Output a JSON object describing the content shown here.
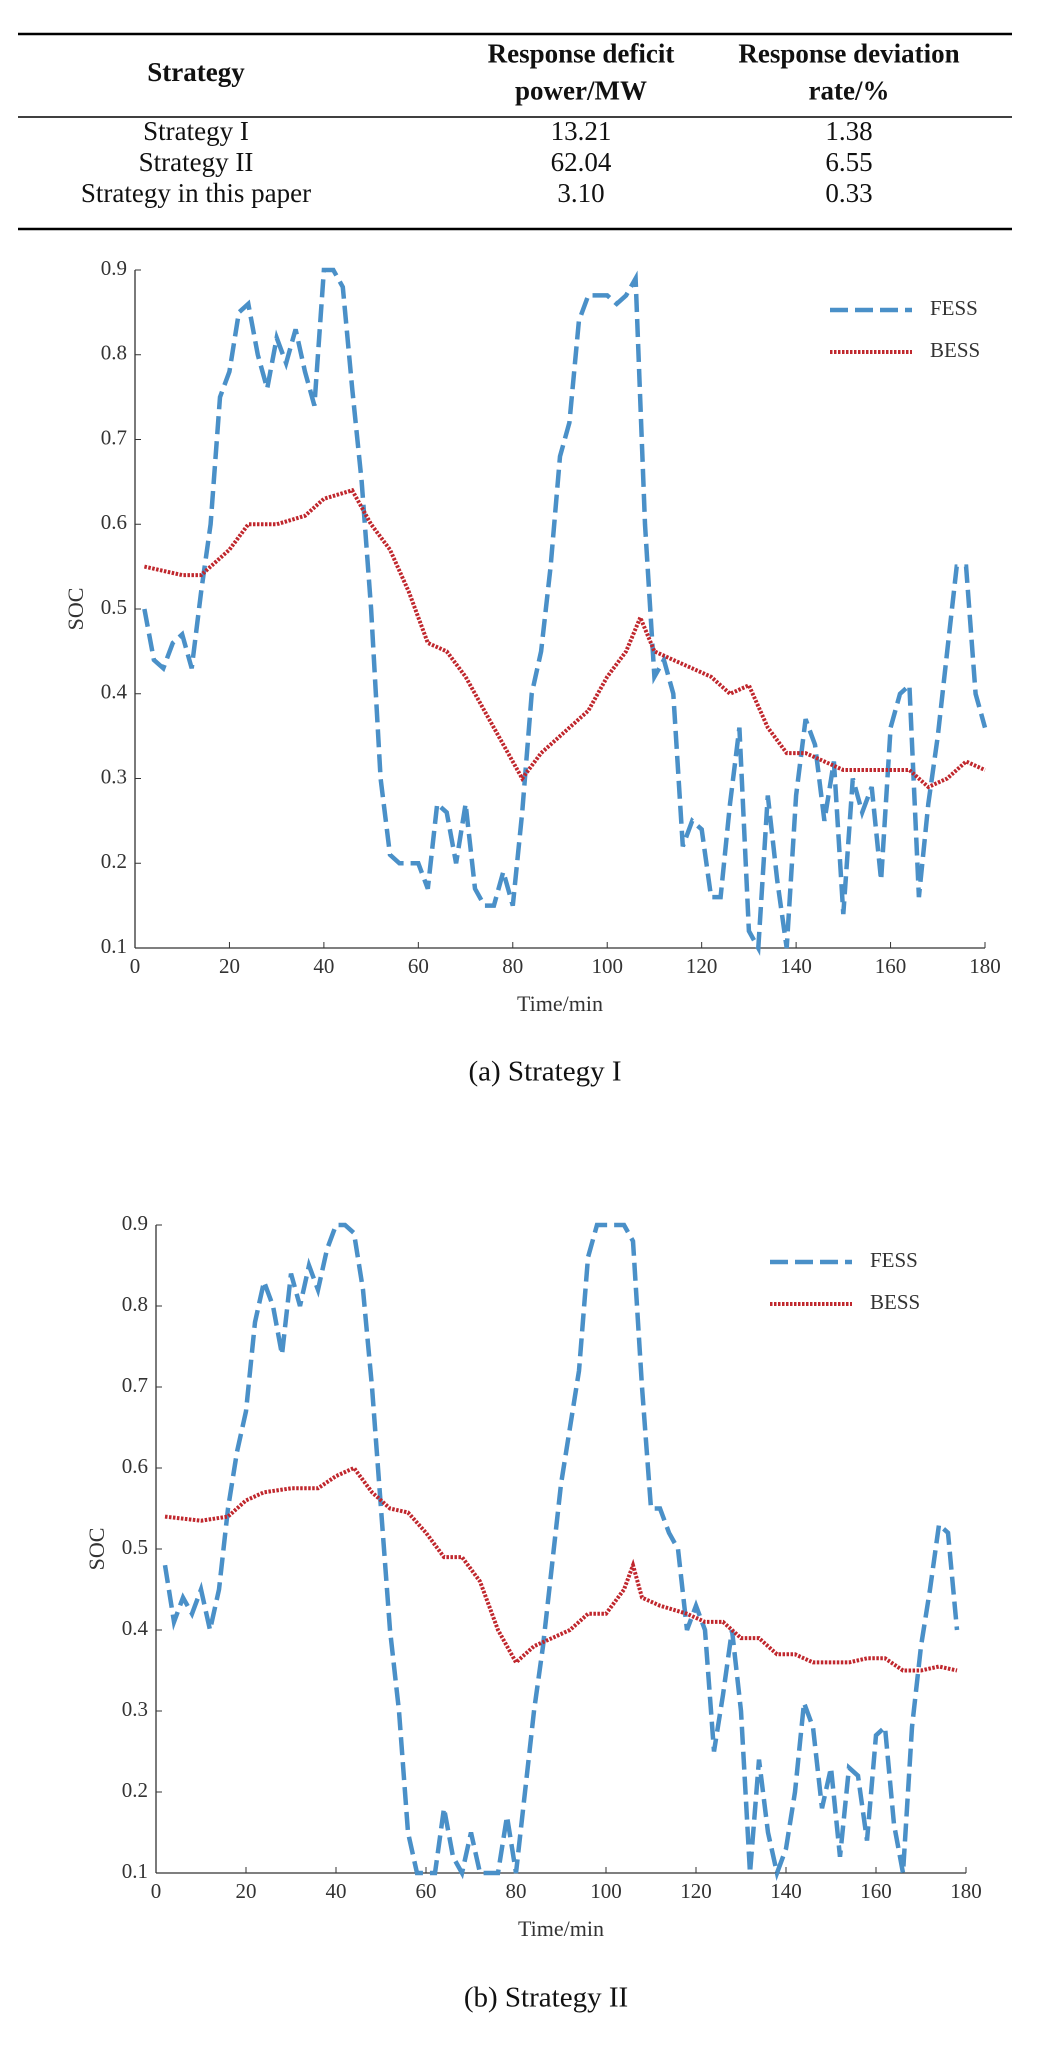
{
  "table": {
    "header": [
      [
        "Strategy"
      ],
      [
        "Response deficit",
        "power/MW"
      ],
      [
        "Response deviation",
        "rate/%"
      ]
    ],
    "rows": [
      [
        "Strategy I",
        "13.21",
        "1.38"
      ],
      [
        "Strategy II",
        "62.04",
        "6.55"
      ],
      [
        "Strategy in this paper",
        "3.10",
        "0.33"
      ]
    ]
  },
  "chart_data": [
    {
      "type": "line",
      "caption": "(a) Strategy I",
      "x_label": "Time/min",
      "y_label": "SOC",
      "xlim": [
        0,
        180
      ],
      "ylim": [
        0.1,
        0.9
      ],
      "xticks": [
        0,
        20,
        40,
        60,
        80,
        100,
        120,
        140,
        160,
        180
      ],
      "yticks": [
        0.1,
        0.2,
        0.3,
        0.4,
        0.5,
        0.6,
        0.7,
        0.8,
        0.9
      ],
      "legend": "upper right",
      "series": [
        {
          "name": "FESS",
          "color": "#4a90c8",
          "dash": "dashed",
          "x": [
            2,
            4,
            6,
            8,
            10,
            12,
            14,
            16,
            18,
            20,
            22,
            24,
            26,
            28,
            30,
            32,
            34,
            36,
            38,
            40,
            42,
            44,
            46,
            48,
            50,
            52,
            54,
            56,
            58,
            60,
            62,
            64,
            66,
            68,
            70,
            72,
            74,
            76,
            78,
            80,
            82,
            84,
            86,
            88,
            90,
            92,
            94,
            96,
            98,
            100,
            102,
            104,
            106,
            108,
            110,
            112,
            114,
            116,
            118,
            120,
            122,
            124,
            126,
            128,
            130,
            132,
            134,
            136,
            138,
            140,
            142,
            144,
            146,
            148,
            150,
            152,
            154,
            156,
            158,
            160,
            162,
            164,
            166,
            168,
            170,
            172,
            174,
            176,
            178,
            180
          ],
          "values": [
            0.5,
            0.44,
            0.43,
            0.46,
            0.47,
            0.43,
            0.52,
            0.6,
            0.75,
            0.78,
            0.85,
            0.86,
            0.8,
            0.76,
            0.82,
            0.79,
            0.83,
            0.78,
            0.74,
            0.9,
            0.9,
            0.88,
            0.76,
            0.65,
            0.5,
            0.3,
            0.21,
            0.2,
            0.2,
            0.2,
            0.17,
            0.27,
            0.26,
            0.2,
            0.27,
            0.17,
            0.15,
            0.15,
            0.19,
            0.15,
            0.26,
            0.4,
            0.45,
            0.55,
            0.68,
            0.72,
            0.84,
            0.87,
            0.87,
            0.87,
            0.86,
            0.87,
            0.89,
            0.6,
            0.42,
            0.44,
            0.4,
            0.22,
            0.25,
            0.24,
            0.16,
            0.16,
            0.27,
            0.36,
            0.12,
            0.1,
            0.28,
            0.18,
            0.1,
            0.28,
            0.37,
            0.34,
            0.25,
            0.32,
            0.14,
            0.3,
            0.26,
            0.29,
            0.18,
            0.36,
            0.4,
            0.41,
            0.16,
            0.27,
            0.35,
            0.45,
            0.55,
            0.55,
            0.4,
            0.36
          ]
        },
        {
          "name": "BESS",
          "color": "#c0272d",
          "dash": "dotted",
          "x": [
            2,
            10,
            14,
            20,
            24,
            30,
            36,
            40,
            46,
            50,
            54,
            58,
            62,
            66,
            70,
            74,
            78,
            82,
            86,
            90,
            96,
            100,
            104,
            107,
            110,
            114,
            118,
            122,
            126,
            130,
            134,
            138,
            142,
            146,
            150,
            156,
            160,
            164,
            168,
            172,
            176,
            180
          ],
          "values": [
            0.55,
            0.54,
            0.54,
            0.57,
            0.6,
            0.6,
            0.61,
            0.63,
            0.64,
            0.6,
            0.57,
            0.52,
            0.46,
            0.45,
            0.42,
            0.38,
            0.34,
            0.3,
            0.33,
            0.35,
            0.38,
            0.42,
            0.45,
            0.49,
            0.45,
            0.44,
            0.43,
            0.42,
            0.4,
            0.41,
            0.36,
            0.33,
            0.33,
            0.32,
            0.31,
            0.31,
            0.31,
            0.31,
            0.29,
            0.3,
            0.32,
            0.31
          ]
        }
      ]
    },
    {
      "type": "line",
      "caption": "(b) Strategy II",
      "x_label": "Time/min",
      "y_label": "SOC",
      "xlim": [
        0,
        180
      ],
      "ylim": [
        0.1,
        0.9
      ],
      "xticks": [
        0,
        20,
        40,
        60,
        80,
        100,
        120,
        140,
        160,
        180
      ],
      "yticks": [
        0.1,
        0.2,
        0.3,
        0.4,
        0.5,
        0.6,
        0.7,
        0.8,
        0.9
      ],
      "legend": "upper right",
      "series": [
        {
          "name": "FESS",
          "color": "#4a90c8",
          "dash": "dashed",
          "x": [
            2,
            4,
            6,
            8,
            10,
            12,
            14,
            16,
            18,
            20,
            22,
            24,
            26,
            28,
            30,
            32,
            34,
            36,
            38,
            40,
            42,
            44,
            46,
            48,
            50,
            52,
            54,
            56,
            58,
            60,
            62,
            64,
            66,
            68,
            70,
            72,
            74,
            76,
            78,
            80,
            82,
            84,
            86,
            88,
            90,
            92,
            94,
            96,
            98,
            100,
            102,
            104,
            106,
            108,
            110,
            112,
            114,
            116,
            118,
            120,
            122,
            124,
            126,
            128,
            130,
            132,
            134,
            136,
            138,
            140,
            142,
            144,
            146,
            148,
            150,
            152,
            154,
            156,
            158,
            160,
            162,
            164,
            166,
            168,
            170,
            172,
            174,
            176,
            178
          ],
          "values": [
            0.48,
            0.41,
            0.44,
            0.42,
            0.45,
            0.4,
            0.45,
            0.55,
            0.62,
            0.67,
            0.78,
            0.83,
            0.8,
            0.74,
            0.84,
            0.8,
            0.85,
            0.82,
            0.87,
            0.9,
            0.9,
            0.89,
            0.82,
            0.7,
            0.55,
            0.4,
            0.3,
            0.15,
            0.1,
            0.1,
            0.1,
            0.18,
            0.12,
            0.1,
            0.15,
            0.1,
            0.1,
            0.1,
            0.17,
            0.1,
            0.2,
            0.3,
            0.38,
            0.48,
            0.58,
            0.65,
            0.72,
            0.86,
            0.9,
            0.9,
            0.9,
            0.9,
            0.88,
            0.7,
            0.55,
            0.55,
            0.52,
            0.5,
            0.4,
            0.43,
            0.4,
            0.25,
            0.32,
            0.4,
            0.3,
            0.1,
            0.24,
            0.15,
            0.1,
            0.13,
            0.2,
            0.31,
            0.28,
            0.18,
            0.23,
            0.12,
            0.23,
            0.22,
            0.14,
            0.27,
            0.28,
            0.16,
            0.1,
            0.28,
            0.38,
            0.45,
            0.53,
            0.52,
            0.4
          ]
        },
        {
          "name": "BESS",
          "color": "#c0272d",
          "dash": "dotted",
          "x": [
            2,
            10,
            16,
            20,
            24,
            30,
            36,
            40,
            44,
            48,
            52,
            56,
            60,
            64,
            68,
            72,
            76,
            80,
            84,
            88,
            92,
            96,
            100,
            104,
            106,
            108,
            112,
            118,
            122,
            126,
            130,
            134,
            138,
            142,
            146,
            150,
            154,
            158,
            162,
            166,
            170,
            174,
            178
          ],
          "values": [
            0.54,
            0.535,
            0.54,
            0.56,
            0.57,
            0.575,
            0.575,
            0.59,
            0.6,
            0.57,
            0.55,
            0.545,
            0.52,
            0.49,
            0.49,
            0.46,
            0.4,
            0.36,
            0.38,
            0.39,
            0.4,
            0.42,
            0.42,
            0.45,
            0.48,
            0.44,
            0.43,
            0.42,
            0.41,
            0.41,
            0.39,
            0.39,
            0.37,
            0.37,
            0.36,
            0.36,
            0.36,
            0.365,
            0.365,
            0.35,
            0.35,
            0.355,
            0.35
          ]
        }
      ]
    }
  ]
}
